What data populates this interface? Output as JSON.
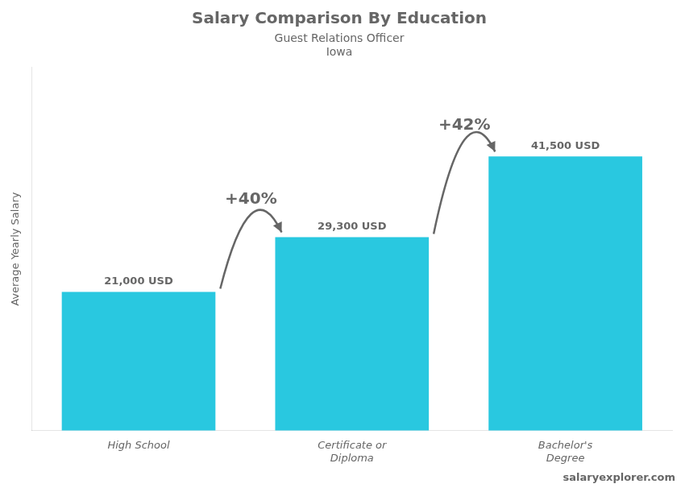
{
  "chart_data": {
    "type": "bar",
    "title": "Salary Comparison By Education",
    "subtitle": "Guest Relations Officer",
    "location": "Iowa",
    "brand": "salaryexplorer.com",
    "y_label": "Average Yearly Salary",
    "categories": [
      "High School",
      "Certificate or\nDiploma",
      "Bachelor's\nDegree"
    ],
    "values": [
      21000,
      29300,
      41500
    ],
    "value_labels": [
      "21,000 USD",
      "29,300 USD",
      "41,500 USD"
    ],
    "data_labels": true,
    "color": "#29c8e0",
    "annotations": [
      "+40%",
      "+42%"
    ],
    "ylim": [
      0,
      55000
    ],
    "tick_labels": "x",
    "grid": false
  }
}
